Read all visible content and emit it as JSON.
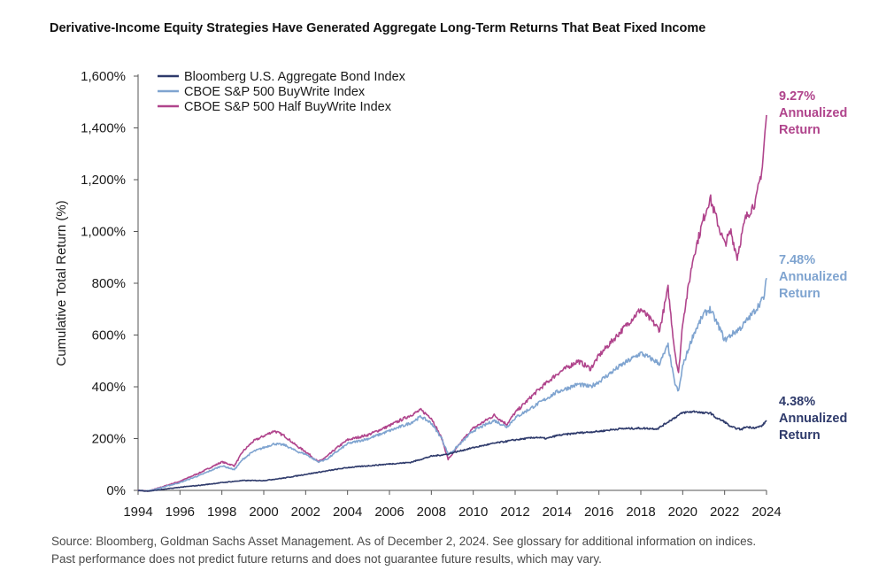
{
  "title": "Derivative-Income Equity Strategies Have Generated Aggregate Long-Term Returns That Beat Fixed Income",
  "footer": {
    "line1": "Source: Bloomberg, Goldman Sachs Asset Management. As of December 2, 2024. See glossary for additional information on indices.",
    "line2": "Past performance does not predict future returns and does not guarantee future results, which may vary."
  },
  "chart_data": {
    "type": "line",
    "ylabel": "Cumulative Total Return (%)",
    "xlim": [
      1994,
      2024
    ],
    "ylim": [
      0,
      1600
    ],
    "x_ticks": [
      "1994",
      "1996",
      "1998",
      "2000",
      "2002",
      "2004",
      "2006",
      "2008",
      "2010",
      "2012",
      "2014",
      "2016",
      "2018",
      "2020",
      "2022",
      "2024"
    ],
    "y_ticks": [
      "0%",
      "200%",
      "400%",
      "600%",
      "800%",
      "1,000%",
      "1,200%",
      "1,400%",
      "1,600%"
    ],
    "legend_position": "top-left",
    "series": [
      {
        "name": "Bloomberg U.S. Aggregate Bond Index",
        "color": "#2e3a6b",
        "annotation": [
          "4.38%",
          "Annualized",
          "Return"
        ],
        "points": [
          [
            1994,
            0
          ],
          [
            1994.5,
            -3
          ],
          [
            1995,
            2
          ],
          [
            1996,
            12
          ],
          [
            1997,
            20
          ],
          [
            1998,
            30
          ],
          [
            1999,
            38
          ],
          [
            2000,
            38
          ],
          [
            2001,
            48
          ],
          [
            2002,
            62
          ],
          [
            2003,
            75
          ],
          [
            2004,
            88
          ],
          [
            2005,
            95
          ],
          [
            2006,
            102
          ],
          [
            2007,
            108
          ],
          [
            2008,
            132
          ],
          [
            2008.8,
            140
          ],
          [
            2009,
            145
          ],
          [
            2010,
            165
          ],
          [
            2011,
            182
          ],
          [
            2012,
            195
          ],
          [
            2013,
            205
          ],
          [
            2013.5,
            200
          ],
          [
            2014,
            212
          ],
          [
            2015,
            222
          ],
          [
            2016,
            228
          ],
          [
            2017,
            238
          ],
          [
            2018,
            240
          ],
          [
            2018.8,
            238
          ],
          [
            2019.5,
            275
          ],
          [
            2020,
            300
          ],
          [
            2020.6,
            305
          ],
          [
            2021,
            298
          ],
          [
            2021.3,
            300
          ],
          [
            2021.6,
            280
          ],
          [
            2022,
            265
          ],
          [
            2022.3,
            245
          ],
          [
            2022.8,
            235
          ],
          [
            2023,
            245
          ],
          [
            2023.5,
            242
          ],
          [
            2023.8,
            250
          ],
          [
            2024,
            270
          ]
        ]
      },
      {
        "name": "CBOE S&P 500 BuyWrite Index",
        "color": "#7fa4d0",
        "annotation": [
          "7.48%",
          "Annualized",
          "Return"
        ],
        "points": [
          [
            1994,
            0
          ],
          [
            1994.5,
            -2
          ],
          [
            1995,
            8
          ],
          [
            1996,
            30
          ],
          [
            1997,
            60
          ],
          [
            1998,
            95
          ],
          [
            1998.6,
            80
          ],
          [
            1999,
            120
          ],
          [
            1999.5,
            150
          ],
          [
            2000,
            165
          ],
          [
            2000.5,
            180
          ],
          [
            2001,
            175
          ],
          [
            2001.6,
            150
          ],
          [
            2002,
            140
          ],
          [
            2002.6,
            110
          ],
          [
            2003,
            120
          ],
          [
            2003.5,
            150
          ],
          [
            2004,
            180
          ],
          [
            2005,
            200
          ],
          [
            2006,
            230
          ],
          [
            2007,
            260
          ],
          [
            2007.5,
            285
          ],
          [
            2008,
            260
          ],
          [
            2008.5,
            200
          ],
          [
            2008.8,
            140
          ],
          [
            2009,
            150
          ],
          [
            2009.5,
            190
          ],
          [
            2010,
            230
          ],
          [
            2011,
            270
          ],
          [
            2011.6,
            245
          ],
          [
            2012,
            280
          ],
          [
            2013,
            330
          ],
          [
            2014,
            380
          ],
          [
            2015,
            410
          ],
          [
            2015.6,
            400
          ],
          [
            2016,
            420
          ],
          [
            2017,
            480
          ],
          [
            2018,
            530
          ],
          [
            2018.9,
            490
          ],
          [
            2019.3,
            560
          ],
          [
            2019.6,
            420
          ],
          [
            2019.8,
            380
          ],
          [
            2020,
            480
          ],
          [
            2020.5,
            600
          ],
          [
            2021,
            680
          ],
          [
            2021.3,
            700
          ],
          [
            2021.8,
            620
          ],
          [
            2022,
            580
          ],
          [
            2022.3,
            600
          ],
          [
            2022.8,
            630
          ],
          [
            2023,
            650
          ],
          [
            2023.5,
            700
          ],
          [
            2023.9,
            750
          ],
          [
            2024,
            820
          ]
        ]
      },
      {
        "name": "CBOE S&P 500 Half BuyWrite Index",
        "color": "#b0448c",
        "annotation": [
          "9.27%",
          "Annualized",
          "Return"
        ],
        "points": [
          [
            1994,
            0
          ],
          [
            1994.5,
            -3
          ],
          [
            1995,
            10
          ],
          [
            1996,
            35
          ],
          [
            1997,
            70
          ],
          [
            1998,
            110
          ],
          [
            1998.6,
            95
          ],
          [
            1999,
            150
          ],
          [
            1999.5,
            190
          ],
          [
            2000,
            210
          ],
          [
            2000.5,
            230
          ],
          [
            2001,
            210
          ],
          [
            2001.6,
            170
          ],
          [
            2002,
            150
          ],
          [
            2002.6,
            110
          ],
          [
            2003,
            130
          ],
          [
            2003.5,
            165
          ],
          [
            2004,
            195
          ],
          [
            2005,
            215
          ],
          [
            2006,
            250
          ],
          [
            2007,
            290
          ],
          [
            2007.5,
            310
          ],
          [
            2008,
            280
          ],
          [
            2008.5,
            200
          ],
          [
            2008.8,
            120
          ],
          [
            2009,
            140
          ],
          [
            2009.5,
            195
          ],
          [
            2010,
            240
          ],
          [
            2011,
            290
          ],
          [
            2011.6,
            255
          ],
          [
            2012,
            300
          ],
          [
            2013,
            380
          ],
          [
            2014,
            450
          ],
          [
            2015,
            500
          ],
          [
            2015.6,
            470
          ],
          [
            2016,
            520
          ],
          [
            2017,
            610
          ],
          [
            2018,
            700
          ],
          [
            2018.9,
            620
          ],
          [
            2019.3,
            780
          ],
          [
            2019.6,
            550
          ],
          [
            2019.8,
            450
          ],
          [
            2020,
            650
          ],
          [
            2020.5,
            900
          ],
          [
            2021,
            1050
          ],
          [
            2021.3,
            1130
          ],
          [
            2021.8,
            1000
          ],
          [
            2022,
            950
          ],
          [
            2022.3,
            1000
          ],
          [
            2022.6,
            900
          ],
          [
            2022.8,
            980
          ],
          [
            2023,
            1050
          ],
          [
            2023.5,
            1120
          ],
          [
            2023.8,
            1250
          ],
          [
            2024,
            1450
          ]
        ]
      }
    ]
  }
}
